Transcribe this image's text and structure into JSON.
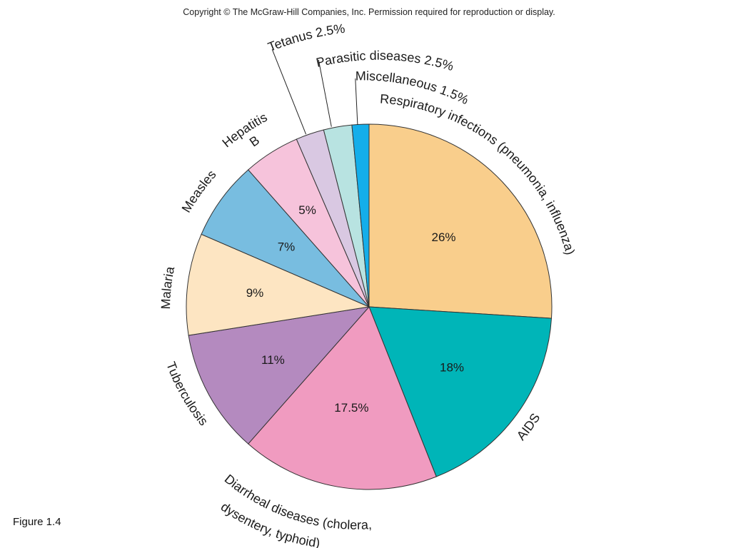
{
  "header": {
    "copyright": "Copyright © The McGraw-Hill Companies, Inc. Permission required for reproduction or display."
  },
  "footer": {
    "figure_label": "Figure 1.4"
  },
  "chart_data": {
    "type": "pie",
    "slices": [
      {
        "name": "Respiratory infections (pneumonia, influenza)",
        "value": 26,
        "value_label": "26%",
        "color": "#f9ce8c"
      },
      {
        "name": "AIDS",
        "value": 18,
        "value_label": "18%",
        "color": "#00b5b8"
      },
      {
        "name": "Diarrheal diseases (cholera, dysentery, typhoid)",
        "value": 17.5,
        "value_label": "17.5%",
        "color": "#f09bc0"
      },
      {
        "name": "Tuberculosis",
        "value": 11,
        "value_label": "11%",
        "color": "#b48abf"
      },
      {
        "name": "Malaria",
        "value": 9,
        "value_label": "9%",
        "color": "#fde5c2"
      },
      {
        "name": "Measles",
        "value": 7,
        "value_label": "7%",
        "color": "#78bde0"
      },
      {
        "name": "Hepatitis B",
        "value": 5,
        "value_label": "5%",
        "color": "#f6c3db"
      },
      {
        "name": "Tetanus",
        "value": 2.5,
        "value_label": "2.5%",
        "color": "#d9c8e2"
      },
      {
        "name": "Parasitic diseases",
        "value": 2.5,
        "value_label": "2.5%",
        "color": "#b8e3e1"
      },
      {
        "name": "Miscellaneous",
        "value": 1.5,
        "value_label": "1.5%",
        "color": "#14aeea"
      }
    ],
    "start_angle_deg": 0,
    "direction": "clockwise",
    "outside_labels": [
      {
        "slice": 0,
        "lines": [
          "Respiratory infections (pneumonia, influenza)"
        ]
      },
      {
        "slice": 1,
        "lines": [
          "AIDS"
        ]
      },
      {
        "slice": 2,
        "lines": [
          "Diarrheal diseases (cholera,",
          "dysentery, typhoid)"
        ]
      },
      {
        "slice": 3,
        "lines": [
          "Tuberculosis"
        ]
      },
      {
        "slice": 4,
        "lines": [
          "Malaria"
        ]
      },
      {
        "slice": 5,
        "lines": [
          "Measles"
        ]
      },
      {
        "slice": 6,
        "lines": [
          "Hepatitis",
          "B"
        ]
      },
      {
        "slice": 7,
        "lines": [
          "Tetanus 2.5%"
        ]
      },
      {
        "slice": 8,
        "lines": [
          "Parasitic diseases 2.5%"
        ]
      },
      {
        "slice": 9,
        "lines": [
          "Miscellaneous 1.5%"
        ]
      }
    ]
  }
}
